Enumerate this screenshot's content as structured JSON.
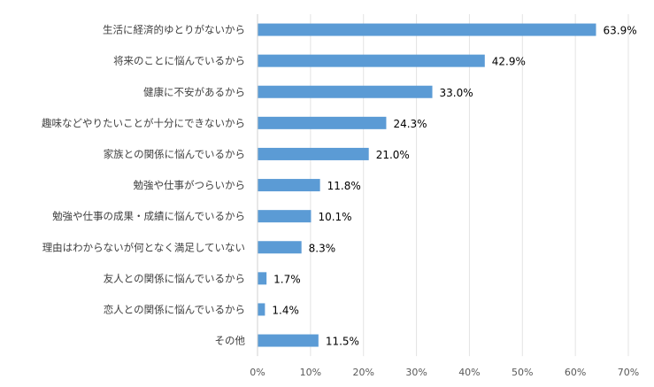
{
  "chart_data": {
    "type": "bar",
    "orientation": "horizontal",
    "categories": [
      "生活に経済的ゆとりがないから",
      "将来のことに悩んでいるから",
      "健康に不安があるから",
      "趣味などやりたいことが十分にできないから",
      "家族との関係に悩んでいるから",
      "勉強や仕事がつらいから",
      "勉強や仕事の成果・成績に悩んでいるから",
      "理由はわからないが何となく満足していない",
      "友人との関係に悩んでいるから",
      "恋人との関係に悩んでいるから",
      "その他"
    ],
    "values": [
      63.9,
      42.9,
      33.0,
      24.3,
      21.0,
      11.8,
      10.1,
      8.3,
      1.7,
      1.4,
      11.5
    ],
    "value_labels": [
      "63.9%",
      "42.9%",
      "33.0%",
      "24.3%",
      "21.0%",
      "11.8%",
      "10.1%",
      "8.3%",
      "1.7%",
      "1.4%",
      "11.5%"
    ],
    "xlim": [
      0,
      70
    ],
    "xticks": [
      "0%",
      "10%",
      "20%",
      "30%",
      "40%",
      "50%",
      "60%",
      "70%"
    ],
    "bar_color": "#5b9bd5",
    "grid": true,
    "title": "",
    "xlabel": "",
    "ylabel": ""
  }
}
